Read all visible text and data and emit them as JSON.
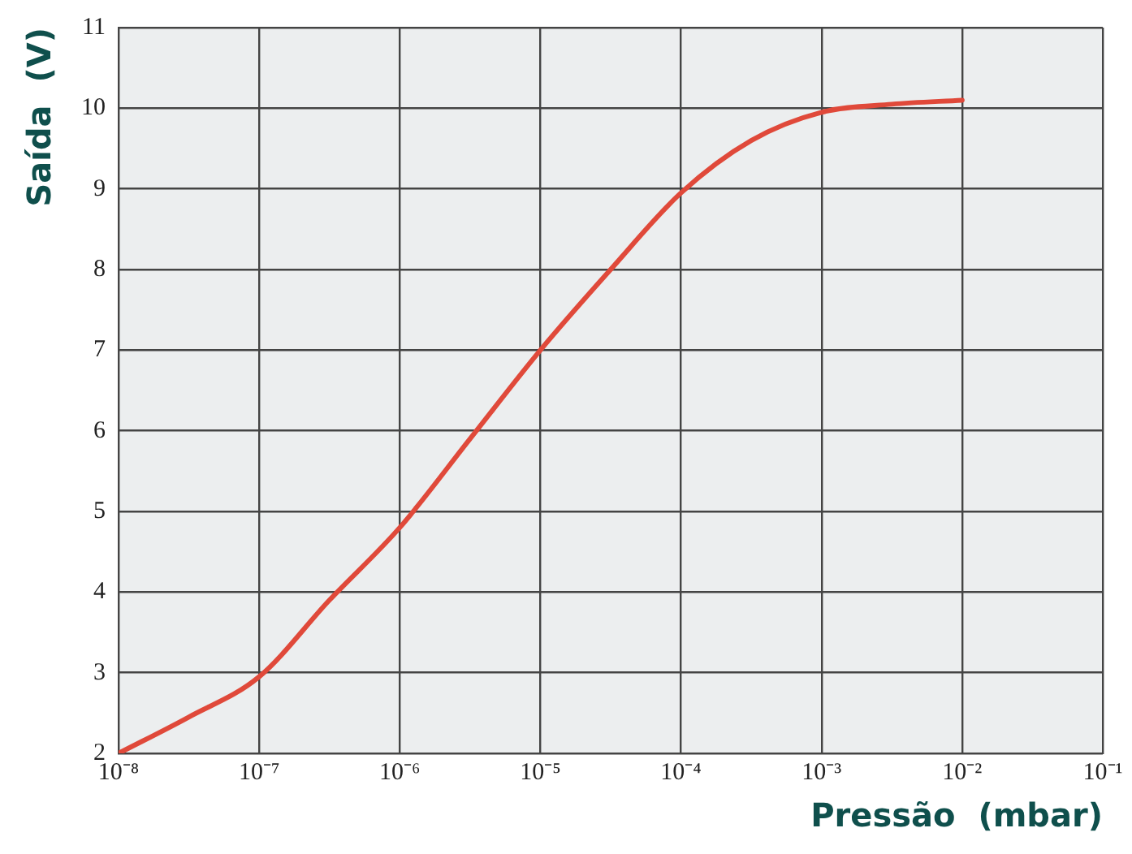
{
  "chart_data": {
    "type": "line",
    "xlabel": "Pressão  (mbar)",
    "ylabel": "Saída  (V)",
    "x": [
      1e-08,
      3.16e-08,
      1e-07,
      3.16e-07,
      1e-06,
      3.16e-06,
      1e-05,
      3.16e-05,
      0.0001,
      0.000316,
      0.001,
      0.00316,
      0.01
    ],
    "series": [
      {
        "color": "#e0493a",
        "values": [
          2.0,
          2.45,
          2.95,
          3.9,
          4.8,
          5.9,
          7.0,
          8.0,
          8.95,
          9.6,
          9.95,
          10.05,
          10.1
        ]
      }
    ],
    "log": "x",
    "xlim": [
      1e-08,
      0.1
    ],
    "xticks": [
      {
        "value": 1e-08,
        "label": "10⁻⁸"
      },
      {
        "value": 1e-07,
        "label": "10⁻⁷"
      },
      {
        "value": 1e-06,
        "label": "10⁻⁶"
      },
      {
        "value": 1e-05,
        "label": "10⁻⁵"
      },
      {
        "value": 0.0001,
        "label": "10⁻⁴"
      },
      {
        "value": 0.001,
        "label": "10⁻³"
      },
      {
        "value": 0.01,
        "label": "10⁻²"
      },
      {
        "value": 0.1,
        "label": "10⁻¹"
      }
    ],
    "ylim": [
      2,
      11
    ],
    "yticks": [
      2,
      3,
      4,
      5,
      6,
      7,
      8,
      9,
      10,
      11
    ],
    "grid": true,
    "legend": false,
    "marker": "none",
    "line_style": "solid"
  }
}
